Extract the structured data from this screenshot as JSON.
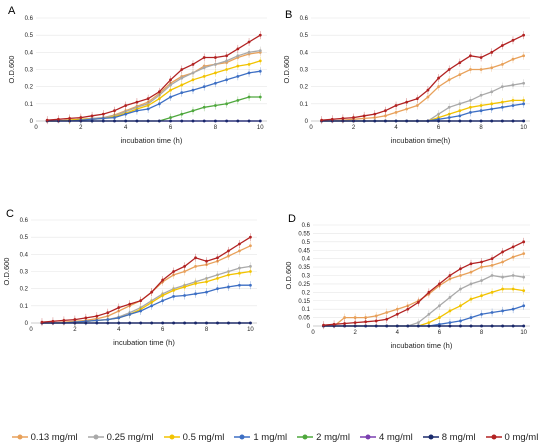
{
  "legend": [
    {
      "label": "0.13 mg/ml",
      "color": "#e8a15a"
    },
    {
      "label": "0.25 mg/ml",
      "color": "#a9a9a9"
    },
    {
      "label": "0.5 mg/ml",
      "color": "#f2c300"
    },
    {
      "label": "1 mg/ml",
      "color": "#3d6fc4"
    },
    {
      "label": "2 mg/ml",
      "color": "#4fa83d"
    },
    {
      "label": "4 mg/ml",
      "color": "#7a3fb0"
    },
    {
      "label": "8 mg/ml",
      "color": "#1a2a6c"
    },
    {
      "label": "0 mg/ml",
      "color": "#b22222"
    }
  ],
  "chart_data": [
    {
      "type": "line",
      "panel": "A",
      "x": [
        0.5,
        1,
        1.5,
        2,
        2.5,
        3,
        3.5,
        4,
        4.5,
        5,
        5.5,
        6,
        6.5,
        7,
        7.5,
        8,
        8.5,
        9,
        9.5,
        10
      ],
      "xlabel": "incubation time (h)",
      "ylabel": "O.D.600",
      "xlim": [
        0,
        10.3
      ],
      "ylim": [
        0,
        0.6
      ],
      "xticks": [
        0,
        2,
        4,
        6,
        8,
        10
      ],
      "yticks": [
        0,
        0.1,
        0.2,
        0.3,
        0.4,
        0.5,
        0.6
      ],
      "series": [
        {
          "name": "0.13 mg/ml",
          "color": "#e8a15a",
          "values": [
            0,
            0,
            0.005,
            0.01,
            0.015,
            0.02,
            0.035,
            0.06,
            0.085,
            0.11,
            0.16,
            0.22,
            0.26,
            0.28,
            0.32,
            0.33,
            0.34,
            0.37,
            0.39,
            0.4
          ]
        },
        {
          "name": "0.25 mg/ml",
          "color": "#a9a9a9",
          "values": [
            0,
            0,
            0.005,
            0.01,
            0.015,
            0.02,
            0.03,
            0.055,
            0.08,
            0.1,
            0.15,
            0.21,
            0.25,
            0.28,
            0.31,
            0.33,
            0.35,
            0.38,
            0.4,
            0.41
          ]
        },
        {
          "name": "0.5 mg/ml",
          "color": "#f2c300",
          "values": [
            0,
            0,
            0.005,
            0.01,
            0.01,
            0.015,
            0.025,
            0.045,
            0.07,
            0.09,
            0.13,
            0.18,
            0.21,
            0.24,
            0.26,
            0.28,
            0.3,
            0.32,
            0.33,
            0.35
          ]
        },
        {
          "name": "1 mg/ml",
          "color": "#3d6fc4",
          "values": [
            0,
            0,
            0,
            0.005,
            0.01,
            0.015,
            0.02,
            0.04,
            0.06,
            0.07,
            0.1,
            0.14,
            0.165,
            0.18,
            0.2,
            0.22,
            0.24,
            0.26,
            0.28,
            0.29
          ]
        },
        {
          "name": "2 mg/ml",
          "color": "#4fa83d",
          "values": [
            0,
            0,
            0,
            0,
            0,
            0,
            0,
            0,
            0,
            0,
            0,
            0.02,
            0.04,
            0.06,
            0.08,
            0.09,
            0.1,
            0.12,
            0.14,
            0.14
          ]
        },
        {
          "name": "4 mg/ml",
          "color": "#7a3fb0",
          "values": [
            0,
            0,
            0,
            0,
            0,
            0,
            0,
            0,
            0,
            0,
            0,
            0,
            0,
            0,
            0,
            0,
            0,
            0,
            0,
            0
          ]
        },
        {
          "name": "8 mg/ml",
          "color": "#1a2a6c",
          "values": [
            0,
            0,
            0,
            0,
            0,
            0,
            0,
            0,
            0,
            0,
            0,
            0,
            0,
            0,
            0,
            0,
            0,
            0,
            0,
            0
          ]
        },
        {
          "name": "0 mg/ml",
          "color": "#b22222",
          "values": [
            0.005,
            0.01,
            0.015,
            0.02,
            0.03,
            0.04,
            0.06,
            0.09,
            0.11,
            0.13,
            0.17,
            0.24,
            0.3,
            0.33,
            0.37,
            0.37,
            0.38,
            0.42,
            0.46,
            0.5
          ]
        }
      ]
    },
    {
      "type": "line",
      "panel": "B",
      "x": [
        0.5,
        1,
        1.5,
        2,
        2.5,
        3,
        3.5,
        4,
        4.5,
        5,
        5.5,
        6,
        6.5,
        7,
        7.5,
        8,
        8.5,
        9,
        9.5,
        10
      ],
      "xlabel": "incubation time(h)",
      "ylabel": "O.D.600",
      "xlim": [
        0,
        10.3
      ],
      "ylim": [
        0,
        0.6
      ],
      "xticks": [
        0,
        2,
        4,
        6,
        8,
        10
      ],
      "yticks": [
        0,
        0.1,
        0.2,
        0.3,
        0.4,
        0.5,
        0.6
      ],
      "series": [
        {
          "name": "0.13 mg/ml",
          "color": "#e8a15a",
          "values": [
            0,
            0,
            0.005,
            0.01,
            0.015,
            0.02,
            0.03,
            0.05,
            0.07,
            0.09,
            0.14,
            0.2,
            0.24,
            0.27,
            0.3,
            0.3,
            0.31,
            0.33,
            0.36,
            0.38
          ]
        },
        {
          "name": "0.25 mg/ml",
          "color": "#a9a9a9",
          "values": [
            0,
            0,
            0,
            0,
            0,
            0,
            0,
            0,
            0,
            0,
            0,
            0.04,
            0.08,
            0.1,
            0.12,
            0.15,
            0.17,
            0.2,
            0.21,
            0.22
          ]
        },
        {
          "name": "0.5 mg/ml",
          "color": "#f2c300",
          "values": [
            0,
            0,
            0,
            0,
            0,
            0,
            0,
            0,
            0,
            0,
            0,
            0.02,
            0.04,
            0.06,
            0.08,
            0.09,
            0.1,
            0.11,
            0.12,
            0.12
          ]
        },
        {
          "name": "1 mg/ml",
          "color": "#3d6fc4",
          "values": [
            0,
            0,
            0,
            0,
            0,
            0,
            0,
            0,
            0,
            0,
            0,
            0.01,
            0.02,
            0.03,
            0.05,
            0.06,
            0.07,
            0.08,
            0.09,
            0.1
          ]
        },
        {
          "name": "2 mg/ml",
          "color": "#4fa83d",
          "values": [
            0,
            0,
            0,
            0,
            0,
            0,
            0,
            0,
            0,
            0,
            0,
            0,
            0,
            0,
            0,
            0,
            0,
            0,
            0,
            0
          ]
        },
        {
          "name": "4 mg/ml",
          "color": "#7a3fb0",
          "values": [
            0,
            0,
            0,
            0,
            0,
            0,
            0,
            0,
            0,
            0,
            0,
            0,
            0,
            0,
            0,
            0,
            0,
            0,
            0,
            0
          ]
        },
        {
          "name": "8 mg/ml",
          "color": "#1a2a6c",
          "values": [
            0,
            0,
            0,
            0,
            0,
            0,
            0,
            0,
            0,
            0,
            0,
            0,
            0,
            0,
            0,
            0,
            0,
            0,
            0,
            0
          ]
        },
        {
          "name": "0 mg/ml",
          "color": "#b22222",
          "values": [
            0.005,
            0.01,
            0.015,
            0.02,
            0.03,
            0.04,
            0.06,
            0.09,
            0.11,
            0.13,
            0.18,
            0.25,
            0.3,
            0.34,
            0.38,
            0.37,
            0.4,
            0.44,
            0.47,
            0.5
          ]
        }
      ]
    },
    {
      "type": "line",
      "panel": "C",
      "x": [
        0.5,
        1,
        1.5,
        2,
        2.5,
        3,
        3.5,
        4,
        4.5,
        5,
        5.5,
        6,
        6.5,
        7,
        7.5,
        8,
        8.5,
        9,
        9.5,
        10
      ],
      "xlabel": "incubation time (h)",
      "ylabel": "O.D.600",
      "xlim": [
        0,
        10.3
      ],
      "ylim": [
        0,
        0.6
      ],
      "xticks": [
        0,
        2,
        4,
        6,
        8,
        10
      ],
      "yticks": [
        0,
        0.1,
        0.2,
        0.3,
        0.4,
        0.5,
        0.6
      ],
      "series": [
        {
          "name": "0.13 mg/ml",
          "color": "#e8a15a",
          "values": [
            0,
            0,
            0.005,
            0.01,
            0.015,
            0.025,
            0.04,
            0.07,
            0.1,
            0.13,
            0.18,
            0.24,
            0.28,
            0.3,
            0.33,
            0.34,
            0.36,
            0.39,
            0.42,
            0.45
          ]
        },
        {
          "name": "0.25 mg/ml",
          "color": "#a9a9a9",
          "values": [
            0,
            0,
            0,
            0.005,
            0.01,
            0.015,
            0.02,
            0.035,
            0.06,
            0.09,
            0.13,
            0.17,
            0.2,
            0.22,
            0.24,
            0.26,
            0.28,
            0.3,
            0.32,
            0.33
          ]
        },
        {
          "name": "0.5 mg/ml",
          "color": "#f2c300",
          "values": [
            0,
            0,
            0,
            0.005,
            0.01,
            0.015,
            0.02,
            0.03,
            0.05,
            0.08,
            0.12,
            0.16,
            0.19,
            0.21,
            0.23,
            0.24,
            0.26,
            0.28,
            0.29,
            0.3
          ]
        },
        {
          "name": "1 mg/ml",
          "color": "#3d6fc4",
          "values": [
            0,
            0,
            0,
            0.005,
            0.01,
            0.015,
            0.02,
            0.03,
            0.05,
            0.07,
            0.1,
            0.13,
            0.155,
            0.16,
            0.17,
            0.18,
            0.2,
            0.21,
            0.22,
            0.22
          ]
        },
        {
          "name": "2 mg/ml",
          "color": "#4fa83d",
          "values": [
            0,
            0,
            0,
            0,
            0,
            0,
            0,
            0,
            0,
            0,
            0,
            0,
            0,
            0,
            0,
            0,
            0,
            0,
            0,
            0
          ]
        },
        {
          "name": "4 mg/ml",
          "color": "#7a3fb0",
          "values": [
            0,
            0,
            0,
            0,
            0,
            0,
            0,
            0,
            0,
            0,
            0,
            0,
            0,
            0,
            0,
            0,
            0,
            0,
            0,
            0
          ]
        },
        {
          "name": "8 mg/ml",
          "color": "#1a2a6c",
          "values": [
            0,
            0,
            0,
            0,
            0,
            0,
            0,
            0,
            0,
            0,
            0,
            0,
            0,
            0,
            0,
            0,
            0,
            0,
            0,
            0
          ]
        },
        {
          "name": "0 mg/ml",
          "color": "#b22222",
          "values": [
            0.005,
            0.01,
            0.015,
            0.02,
            0.03,
            0.04,
            0.06,
            0.09,
            0.11,
            0.13,
            0.18,
            0.25,
            0.3,
            0.33,
            0.38,
            0.36,
            0.38,
            0.42,
            0.46,
            0.5
          ]
        }
      ]
    },
    {
      "type": "line",
      "panel": "D",
      "x": [
        0.5,
        1,
        1.5,
        2,
        2.5,
        3,
        3.5,
        4,
        4.5,
        5,
        5.5,
        6,
        6.5,
        7,
        7.5,
        8,
        8.5,
        9,
        9.5,
        10
      ],
      "xlabel": "incubation time (h)",
      "ylabel": "O.D.600",
      "xlim": [
        0,
        10.3
      ],
      "ylim": [
        0,
        0.6
      ],
      "xticks": [
        0,
        2,
        4,
        6,
        8,
        10
      ],
      "yticks": [
        0,
        0.05,
        0.1,
        0.15,
        0.2,
        0.25,
        0.3,
        0.35,
        0.4,
        0.45,
        0.5,
        0.55,
        0.6
      ],
      "series": [
        {
          "name": "0.13 mg/ml",
          "color": "#e8a15a",
          "values": [
            0,
            0,
            0.05,
            0.05,
            0.05,
            0.06,
            0.08,
            0.1,
            0.12,
            0.15,
            0.19,
            0.24,
            0.28,
            0.3,
            0.32,
            0.35,
            0.36,
            0.38,
            0.41,
            0.43
          ]
        },
        {
          "name": "0.25 mg/ml",
          "color": "#a9a9a9",
          "values": [
            0,
            0,
            0,
            0,
            0,
            0,
            0,
            0,
            0,
            0.02,
            0.07,
            0.12,
            0.17,
            0.22,
            0.25,
            0.27,
            0.3,
            0.29,
            0.3,
            0.29
          ]
        },
        {
          "name": "0.5 mg/ml",
          "color": "#f2c300",
          "values": [
            0,
            0,
            0,
            0,
            0,
            0,
            0,
            0,
            0,
            0,
            0.02,
            0.05,
            0.09,
            0.12,
            0.16,
            0.18,
            0.2,
            0.22,
            0.22,
            0.21
          ]
        },
        {
          "name": "1 mg/ml",
          "color": "#3d6fc4",
          "values": [
            0,
            0,
            0,
            0,
            0,
            0,
            0,
            0,
            0,
            0,
            0,
            0.01,
            0.02,
            0.03,
            0.05,
            0.07,
            0.08,
            0.09,
            0.1,
            0.12
          ]
        },
        {
          "name": "2 mg/ml",
          "color": "#4fa83d",
          "values": [
            0,
            0,
            0,
            0,
            0,
            0,
            0,
            0,
            0,
            0,
            0,
            0,
            0,
            0,
            0,
            0,
            0,
            0,
            0,
            0
          ]
        },
        {
          "name": "4 mg/ml",
          "color": "#7a3fb0",
          "values": [
            0,
            0,
            0,
            0,
            0,
            0,
            0,
            0,
            0,
            0,
            0,
            0,
            0,
            0,
            0,
            0,
            0,
            0,
            0,
            0
          ]
        },
        {
          "name": "8 mg/ml",
          "color": "#1a2a6c",
          "values": [
            0,
            0,
            0,
            0,
            0,
            0,
            0,
            0,
            0,
            0,
            0,
            0,
            0,
            0,
            0,
            0,
            0,
            0,
            0,
            0
          ]
        },
        {
          "name": "0 mg/ml",
          "color": "#b22222",
          "values": [
            0.005,
            0.01,
            0.015,
            0.02,
            0.025,
            0.03,
            0.04,
            0.07,
            0.1,
            0.14,
            0.2,
            0.25,
            0.3,
            0.34,
            0.37,
            0.38,
            0.4,
            0.44,
            0.47,
            0.5
          ]
        }
      ]
    }
  ]
}
